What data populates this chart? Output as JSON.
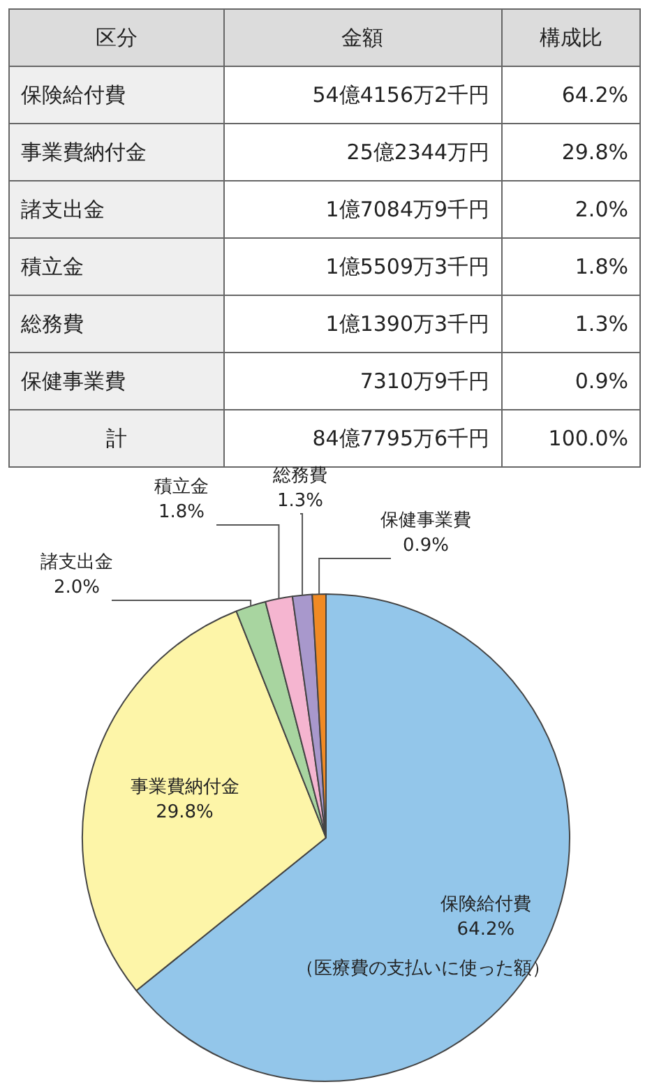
{
  "chart_data": [
    {
      "type": "other",
      "annotations": [
        "区分",
        "金額",
        "構成比",
        "保険給付費",
        "54億4156万2千円",
        "64.2%",
        "事業費納付金",
        "25億2344万円",
        "29.8%",
        "諸支出金",
        "1億7084万9千円",
        "2.0%",
        "積立金",
        "1億5509万3千円",
        "1.8%",
        "総務費",
        "1億1390万3千円",
        "1.3%",
        "保健事業費",
        "7310万9千円",
        "0.9%",
        "計",
        "84億7795万6千円",
        "100.0%"
      ]
    },
    {
      "type": "pie",
      "categories": [
        "保険給付費",
        "事業費納付金",
        "諸支出金",
        "積立金",
        "総務費",
        "保健事業費"
      ],
      "values": [
        64.2,
        29.8,
        2.0,
        1.8,
        1.3,
        0.9
      ],
      "value_labels": [
        "64.2%",
        "29.8%",
        "2.0%",
        "1.8%",
        "1.3%",
        "0.9%"
      ],
      "colors": [
        "#93c6ea",
        "#fdf5a8",
        "#a8d5a0",
        "#f5b5d0",
        "#a898cc",
        "#f08a24"
      ],
      "annotations": [
        "（医療費の支払いに使った額）"
      ]
    }
  ]
}
